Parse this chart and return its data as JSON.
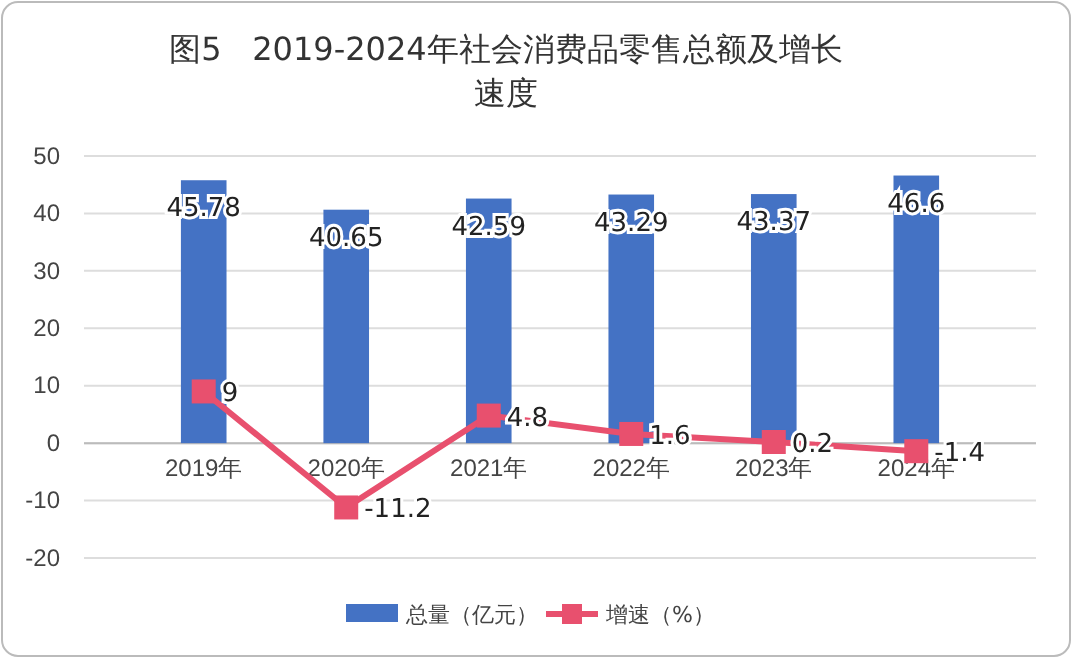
{
  "chart_data": {
    "type": "bar",
    "title": "图5   2019-2024年社会消费品零售总额及增长速度",
    "categories": [
      "2019年",
      "2020年",
      "2021年",
      "2022年",
      "2023年",
      "2024年"
    ],
    "series": [
      {
        "name": "总量（亿元）",
        "color": "#4472c4",
        "values": [
          45.78,
          40.65,
          42.59,
          43.29,
          43.37,
          46.6
        ]
      },
      {
        "name": "增速（%）",
        "type": "line",
        "color": "#e8506e",
        "values": [
          9,
          -11.2,
          4.8,
          1.6,
          0.2,
          -1.4
        ],
        "marker": "square"
      }
    ],
    "ylim": [
      -20,
      50
    ],
    "yticks": [
      -20,
      -10,
      0,
      10,
      20,
      30,
      40,
      50
    ],
    "grid": "y",
    "legend": "bottom",
    "data_labels": true
  }
}
